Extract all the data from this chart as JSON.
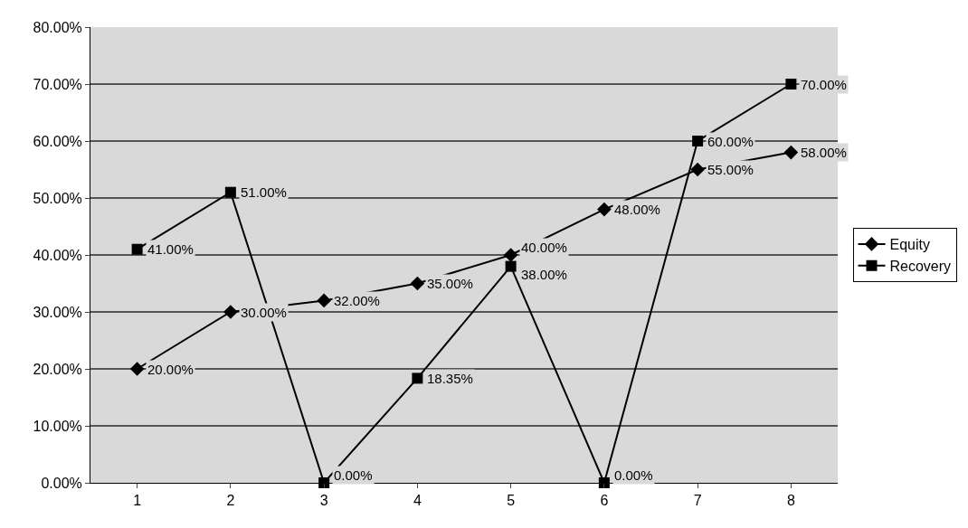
{
  "chart_data": {
    "type": "line",
    "categories": [
      "1",
      "2",
      "3",
      "4",
      "5",
      "6",
      "7",
      "8"
    ],
    "series": [
      {
        "name": "Equity",
        "color": "#000000",
        "marker": "diamond",
        "values": [
          20,
          30,
          32,
          35,
          40,
          48,
          55,
          58
        ],
        "value_labels": [
          "20.00%",
          "30.00%",
          "32.00%",
          "35.00%",
          "40.00%",
          "48.00%",
          "55.00%",
          "58.00%"
        ]
      },
      {
        "name": "Recovery",
        "color": "#000000",
        "marker": "square",
        "values": [
          41,
          51,
          0,
          18.35,
          38,
          0,
          60,
          70
        ],
        "value_labels": [
          "41.00%",
          "51.00%",
          "0.00%",
          "18.35%",
          "38.00%",
          "0.00%",
          "60.00%",
          "70.00%"
        ]
      }
    ],
    "ylim": [
      0,
      80
    ],
    "yticks": [
      {
        "value": 0,
        "label": "0.00%"
      },
      {
        "value": 10,
        "label": "10.00%"
      },
      {
        "value": 20,
        "label": "20.00%"
      },
      {
        "value": 30,
        "label": "30.00%"
      },
      {
        "value": 40,
        "label": "40.00%"
      },
      {
        "value": 50,
        "label": "50.00%"
      },
      {
        "value": 60,
        "label": "60.00%"
      },
      {
        "value": 70,
        "label": "70.00%"
      },
      {
        "value": 80,
        "label": "80.00%"
      }
    ],
    "grid": "y",
    "legend": "right"
  }
}
